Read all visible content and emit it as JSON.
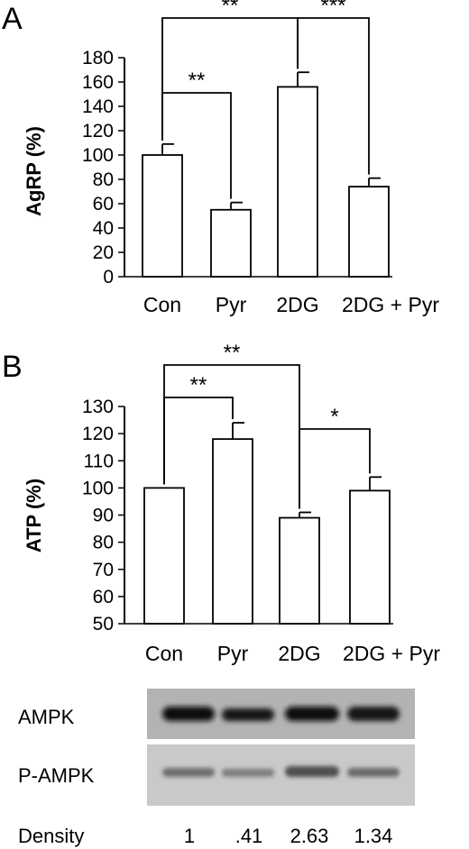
{
  "chart_data": [
    {
      "type": "bar",
      "panel": "A",
      "ylabel": "AgRP (%)",
      "categories": [
        "Con",
        "Pyr",
        "2DG",
        "2DG + Pyr"
      ],
      "values": [
        100,
        55,
        156,
        74
      ],
      "errors": [
        9,
        6,
        12,
        7
      ],
      "ylim": [
        0,
        180
      ],
      "yticks": [
        "0",
        "20",
        "40",
        "60",
        "80",
        "100",
        "120",
        "140",
        "160",
        "180"
      ],
      "significance": [
        {
          "from": 0,
          "to": 1,
          "label": "**"
        },
        {
          "from": 0,
          "to": 2,
          "label": "**"
        },
        {
          "from": 2,
          "to": 3,
          "label": "***"
        }
      ]
    },
    {
      "type": "bar",
      "panel": "B",
      "ylabel": "ATP (%)",
      "categories": [
        "Con",
        "Pyr",
        "2DG",
        "2DG + Pyr"
      ],
      "values": [
        100,
        118,
        89,
        99
      ],
      "errors": [
        0,
        6,
        2,
        5
      ],
      "ylim": [
        50,
        130
      ],
      "yticks": [
        "50",
        "60",
        "70",
        "80",
        "90",
        "100",
        "110",
        "120",
        "130"
      ],
      "significance": [
        {
          "from": 0,
          "to": 1,
          "label": "**"
        },
        {
          "from": 0,
          "to": 2,
          "label": "**"
        },
        {
          "from": 2,
          "to": 3,
          "label": "*"
        }
      ]
    }
  ],
  "blot": {
    "rows": [
      "AMPK",
      "P-AMPK"
    ],
    "density_label": "Density",
    "density": [
      "1",
      ".41",
      "2.63",
      "1.34"
    ]
  }
}
